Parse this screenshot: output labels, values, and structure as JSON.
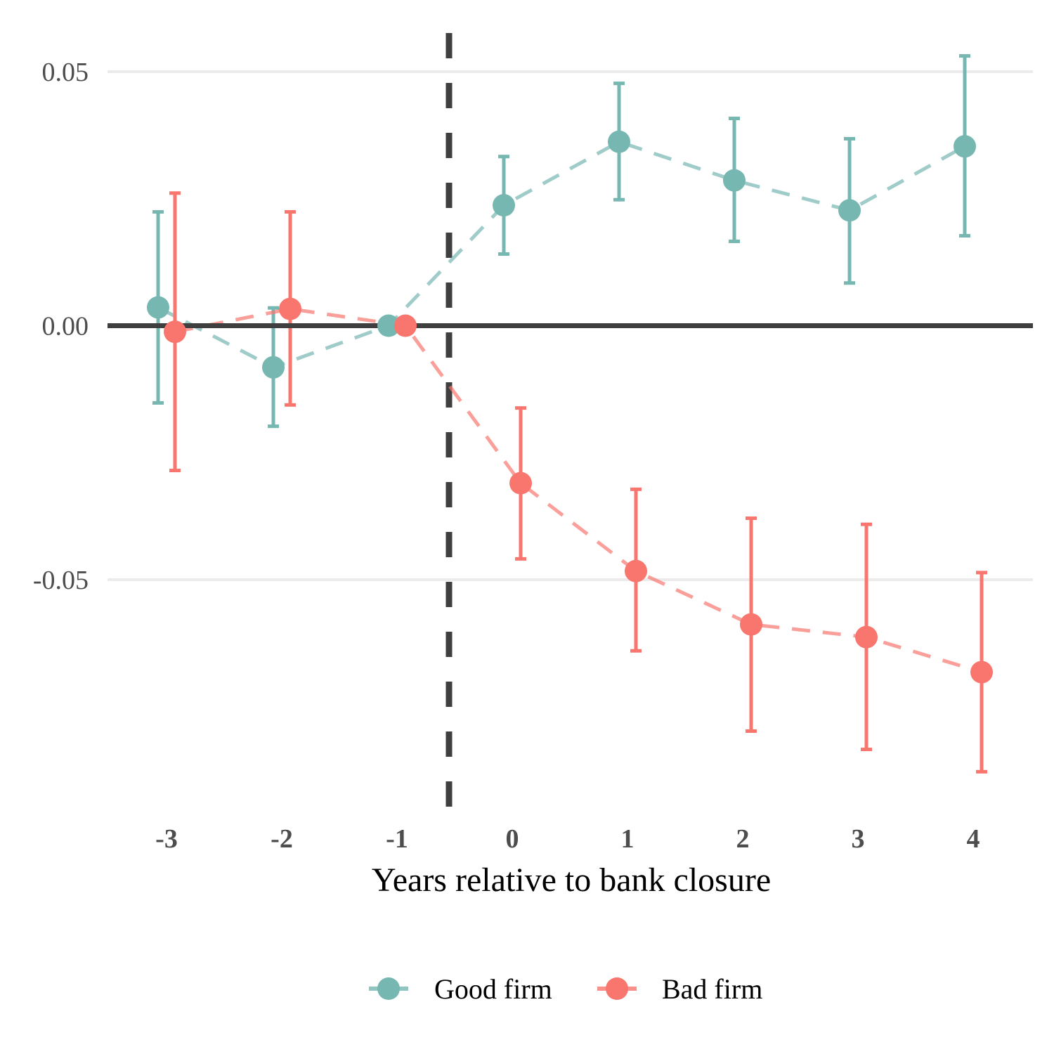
{
  "chart_data": {
    "type": "line",
    "subtype": "event-study with confidence intervals",
    "title": "",
    "xlabel": "Years relative to bank closure",
    "ylabel": "",
    "x": [
      -3,
      -2,
      -1,
      0,
      1,
      2,
      3,
      4
    ],
    "x_tick_labels": [
      "-3",
      "-2",
      "-1",
      "0",
      "1",
      "2",
      "3",
      "4"
    ],
    "y_ticks": [
      0.05,
      0.0,
      -0.05
    ],
    "y_tick_labels": [
      "0.05",
      "0.00",
      "-0.05"
    ],
    "ylim": [
      -0.095,
      0.058
    ],
    "grid": "horizontal major",
    "reference_lines": {
      "horizontal_y": 0.0,
      "vertical_dashed_x": -0.5
    },
    "legend_position": "bottom",
    "series": [
      {
        "name": "Good firm",
        "color": "#76B7B2",
        "line_style": "dashed",
        "values": [
          0.0036,
          -0.0082,
          0.0,
          0.0237,
          0.0362,
          0.0286,
          0.0227,
          0.0353
        ],
        "ci_upper": [
          0.0224,
          0.0035,
          null,
          0.0333,
          0.0477,
          0.0408,
          0.0368,
          0.0531
        ],
        "ci_lower": [
          -0.0152,
          -0.0198,
          null,
          0.0141,
          0.0248,
          0.0166,
          0.0084,
          0.0177
        ]
      },
      {
        "name": "Bad firm",
        "color": "#F8766D",
        "line_style": "dashed",
        "values": [
          -0.0012,
          0.0033,
          0.0,
          -0.031,
          -0.0483,
          -0.0588,
          -0.0613,
          -0.0682
        ],
        "ci_upper": [
          0.0261,
          0.0224,
          null,
          -0.0162,
          -0.0322,
          -0.0379,
          -0.0391,
          -0.0486
        ],
        "ci_lower": [
          -0.0285,
          -0.0156,
          null,
          -0.0459,
          -0.064,
          -0.0798,
          -0.0834,
          -0.0878
        ]
      }
    ]
  },
  "legend": {
    "items": [
      {
        "label": "Good firm",
        "color": "#76B7B2"
      },
      {
        "label": "Bad firm",
        "color": "#F8766D"
      }
    ]
  },
  "colors": {
    "grid": "#EBEBEB",
    "zero_line": "#3F3F3F",
    "event_line": "#3F3F3F"
  }
}
